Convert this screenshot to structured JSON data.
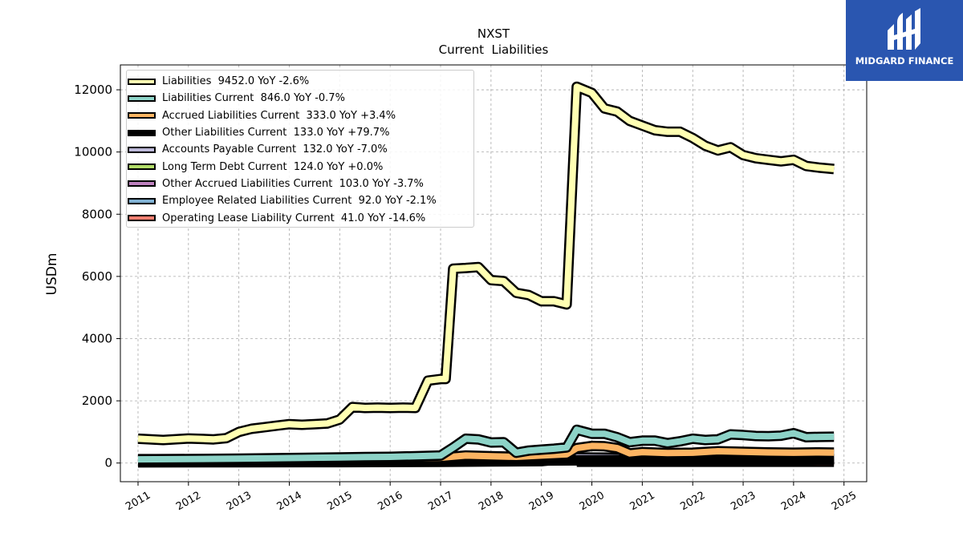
{
  "logo": {
    "text": "MIDGARD FINANCE",
    "icon": "midgard-finance-logo-icon",
    "color": "#2a56b0"
  },
  "chart_data": {
    "type": "area",
    "title": "NXST",
    "subtitle": "Current  Liabilities",
    "ylabel": "USDm",
    "xlabel": "",
    "ylim": [
      -600,
      12800
    ],
    "xlim": [
      2010.65,
      2025.45
    ],
    "yticks": [
      0,
      2000,
      4000,
      6000,
      8000,
      10000,
      12000
    ],
    "xticks": [
      "2011",
      "2012",
      "2013",
      "2014",
      "2015",
      "2016",
      "2017",
      "2018",
      "2019",
      "2020",
      "2021",
      "2022",
      "2023",
      "2024",
      "2025"
    ],
    "grid": true,
    "legend_position": "top-left",
    "series": [
      {
        "name": "Liabilities  9452.0 YoY -2.6%",
        "color": "#ffffb3",
        "x": [
          2011.0,
          2011.5,
          2012.0,
          2012.5,
          2012.75,
          2013.0,
          2013.25,
          2013.5,
          2013.75,
          2014.0,
          2014.25,
          2014.5,
          2014.75,
          2015.0,
          2015.25,
          2015.5,
          2015.75,
          2016.0,
          2016.25,
          2016.5,
          2016.75,
          2017.0,
          2017.1,
          2017.25,
          2017.5,
          2017.75,
          2018.0,
          2018.25,
          2018.5,
          2018.75,
          2019.0,
          2019.25,
          2019.5,
          2019.7,
          2020.0,
          2020.25,
          2020.5,
          2020.75,
          2021.0,
          2021.25,
          2021.5,
          2021.75,
          2022.0,
          2022.25,
          2022.5,
          2022.75,
          2023.0,
          2023.25,
          2023.5,
          2023.75,
          2024.0,
          2024.25,
          2024.5,
          2024.8
        ],
        "values": [
          780,
          740,
          790,
          760,
          800,
          1000,
          1100,
          1150,
          1200,
          1250,
          1230,
          1250,
          1270,
          1400,
          1800,
          1770,
          1780,
          1770,
          1780,
          1770,
          2650,
          2700,
          2700,
          6250,
          6270,
          6300,
          5880,
          5850,
          5470,
          5400,
          5200,
          5200,
          5100,
          12100,
          11900,
          11400,
          11300,
          11000,
          10850,
          10700,
          10650,
          10650,
          10450,
          10200,
          10050,
          10150,
          9900,
          9800,
          9750,
          9700,
          9750,
          9550,
          9500,
          9452
        ]
      },
      {
        "name": "Liabilities Current  846.0 YoY -0.7%",
        "color": "#8dd3c7",
        "x": [
          2011.0,
          2012.0,
          2013.0,
          2014.0,
          2015.0,
          2015.5,
          2016.0,
          2016.5,
          2017.0,
          2017.25,
          2017.5,
          2017.75,
          2018.0,
          2018.25,
          2018.5,
          2018.75,
          2019.0,
          2019.25,
          2019.5,
          2019.7,
          2020.0,
          2020.25,
          2020.5,
          2020.75,
          2021.0,
          2021.25,
          2021.5,
          2021.75,
          2022.0,
          2022.25,
          2022.5,
          2022.75,
          2023.0,
          2023.25,
          2023.5,
          2023.75,
          2024.0,
          2024.25,
          2024.5,
          2024.8
        ],
        "values": [
          120,
          130,
          140,
          160,
          180,
          190,
          200,
          220,
          240,
          500,
          780,
          760,
          660,
          670,
          330,
          400,
          430,
          460,
          500,
          1070,
          940,
          940,
          830,
          670,
          720,
          720,
          640,
          700,
          780,
          740,
          760,
          920,
          900,
          870,
          860,
          880,
          960,
          830,
          840,
          846
        ]
      },
      {
        "name": "Accrued Liabilities Current  333.0 YoY +3.4%",
        "color": "#fdb462",
        "x": [
          2011.0,
          2013.0,
          2015.0,
          2016.0,
          2017.0,
          2017.5,
          2018.0,
          2018.5,
          2019.0,
          2019.5,
          2019.7,
          2020.0,
          2020.25,
          2020.5,
          2020.75,
          2021.0,
          2021.5,
          2022.0,
          2022.5,
          2023.0,
          2023.5,
          2024.0,
          2024.5,
          2024.8
        ],
        "values": [
          100,
          110,
          130,
          150,
          170,
          240,
          220,
          200,
          240,
          280,
          480,
          550,
          540,
          480,
          310,
          350,
          320,
          330,
          380,
          360,
          340,
          330,
          340,
          333
        ]
      },
      {
        "name": "Other Liabilities Current  133.0 YoY +79.7%",
        "color": "#000000",
        "x": [
          2011.0,
          2013.0,
          2015.0,
          2017.0,
          2019.0,
          2020.0,
          2021.0,
          2022.0,
          2023.0,
          2024.0,
          2024.8
        ],
        "values": [
          40,
          50,
          60,
          70,
          80,
          90,
          100,
          90,
          80,
          74,
          133
        ]
      },
      {
        "name": "Accounts Payable Current  132.0 YoY -7.0%",
        "color": "#bebada",
        "x": [
          2011.0,
          2013.0,
          2015.0,
          2017.0,
          2018.0,
          2019.0,
          2019.7,
          2020.5,
          2021.0,
          2021.5,
          2022.0,
          2022.5,
          2023.0,
          2023.5,
          2024.0,
          2024.8
        ],
        "values": [
          20,
          25,
          30,
          40,
          50,
          60,
          180,
          170,
          150,
          160,
          230,
          190,
          130,
          140,
          142,
          132
        ]
      },
      {
        "name": "Long Term Debt Current  124.0 YoY +0.0%",
        "color": "#b3de69",
        "x": [
          2011.0,
          2011.92
        ],
        "values": [
          124,
          124
        ]
      },
      {
        "name": "Other Accrued Liabilities Current  103.0 YoY -3.7%",
        "color": "#bc80bd",
        "x": [
          2020.0,
          2021.0,
          2022.0,
          2023.0,
          2024.0,
          2024.8
        ],
        "values": [
          90,
          100,
          110,
          105,
          107,
          103
        ]
      },
      {
        "name": "Employee Related Liabilities Current  92.0 YoY -2.1%",
        "color": "#80b1d3",
        "x": [
          2012.0,
          2019.7
        ],
        "values": [
          92,
          92
        ]
      },
      {
        "name": "Operating Lease Liability Current  41.0 YoY -14.6%",
        "color": "#fb8072",
        "x": [
          2019.7,
          2024.8
        ],
        "values": [
          41,
          41
        ]
      }
    ]
  }
}
